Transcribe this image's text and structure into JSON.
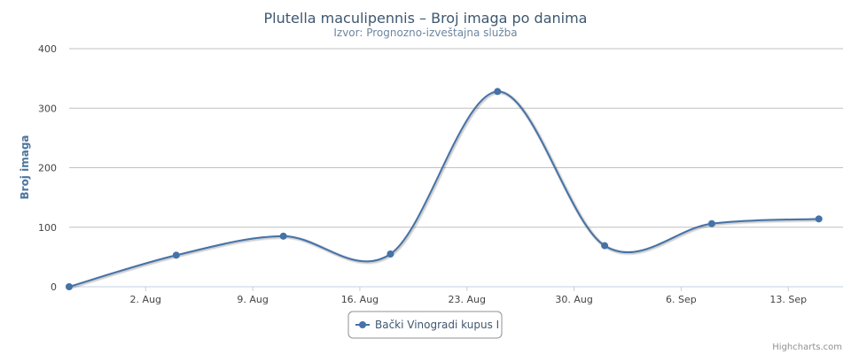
{
  "chart_data": {
    "type": "line",
    "title": "Plutella maculipennis – Broj imaga po danima",
    "subtitle": "Izvor: Prognozno-izveštajna služba",
    "ylabel": "Broj imaga",
    "xlabel": "",
    "ylim": [
      0,
      400
    ],
    "yticks": [
      0,
      100,
      200,
      300,
      400
    ],
    "xlim": [
      "2015-07-28",
      "2015-09-16"
    ],
    "xticks": [
      {
        "date": "2015-08-02",
        "label": "2. Aug"
      },
      {
        "date": "2015-08-09",
        "label": "9. Aug"
      },
      {
        "date": "2015-08-16",
        "label": "16. Aug"
      },
      {
        "date": "2015-08-23",
        "label": "23. Aug"
      },
      {
        "date": "2015-08-30",
        "label": "30. Aug"
      },
      {
        "date": "2015-09-06",
        "label": "6. Sep"
      },
      {
        "date": "2015-09-13",
        "label": "13. Sep"
      }
    ],
    "grid": true,
    "legend_position": "bottom-center",
    "series": [
      {
        "name": "Bački Vinogradi kupus I",
        "color": "#4572a7",
        "x": [
          "2015-07-28",
          "2015-08-04",
          "2015-08-11",
          "2015-08-18",
          "2015-08-25",
          "2015-09-01",
          "2015-09-08",
          "2015-09-15"
        ],
        "y": [
          0,
          53,
          85,
          55,
          328,
          69,
          106,
          114
        ]
      }
    ]
  },
  "credits": "Highcharts.com"
}
